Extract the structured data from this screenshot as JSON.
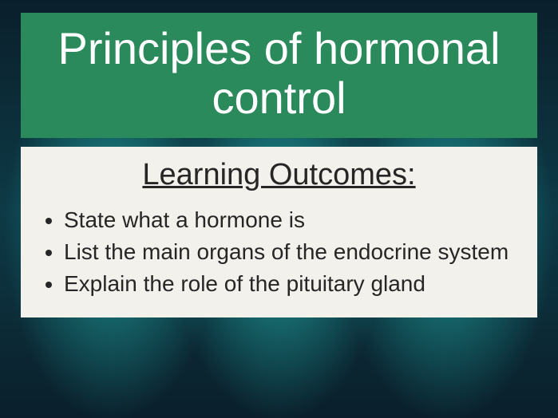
{
  "slide": {
    "title": "Principles of hormonal control",
    "title_box_bg": "#2a8a5c",
    "title_text_color": "#ffffff",
    "title_fontsize": 56,
    "outcomes_heading": "Learning Outcomes:",
    "outcomes_box_bg": "#f3f1ec",
    "outcomes_text_color": "#262626",
    "outcomes_heading_fontsize": 38,
    "outcome_item_fontsize": 28,
    "outcomes": [
      "State what a hormone is",
      "List the main organs of the endocrine system",
      "Explain the role of the pituitary gland"
    ],
    "background": {
      "base_gradient": [
        "#0a1f2b",
        "#0d3a46",
        "#0a1f2b"
      ],
      "glow_color": "rgba(43,226,213,0.55)"
    }
  }
}
